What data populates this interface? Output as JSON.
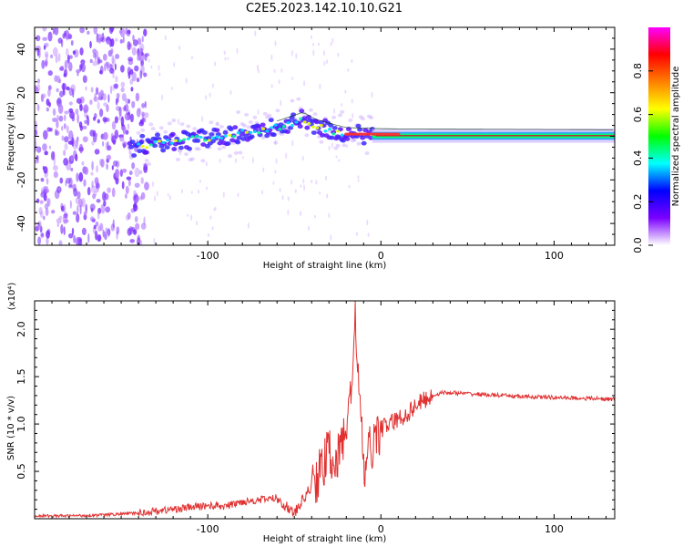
{
  "title": "C2E5.2023.142.10.10.G21",
  "chart_data": [
    {
      "type": "heatmap",
      "xlabel": "Height of straight line (km)",
      "ylabel": "Frequency (Hz)",
      "xlim": [
        -200,
        135
      ],
      "ylim": [
        -50,
        50
      ],
      "x_ticks": [
        -100,
        0,
        100
      ],
      "y_ticks": [
        40,
        20,
        0,
        -20,
        -40
      ],
      "colorbar": {
        "label": "Normalized spectral amplitude",
        "range": [
          0,
          1
        ],
        "ticks": [
          "0.0",
          "0.2",
          "0.4",
          "0.6",
          "0.8"
        ],
        "colors": [
          "#ffffff",
          "#7a00ff",
          "#0000ff",
          "#00ffff",
          "#00ff00",
          "#ffff00",
          "#ff8000",
          "#ff0000",
          "#ff00ff"
        ]
      },
      "ridge": {
        "x": [
          -200,
          -150,
          -140,
          -100,
          -60,
          -45,
          -38,
          -30,
          -20,
          0,
          20,
          60,
          100,
          135
        ],
        "y": [
          -5,
          -8,
          -4,
          -1,
          4,
          8,
          5,
          3,
          1,
          0.5,
          0.3,
          0.2,
          0.1,
          0
        ]
      }
    },
    {
      "type": "line",
      "xlabel": "Height of straight line (km)",
      "ylabel": "SNR (10 * v/v)",
      "y_multiplier": "(x10⁴)",
      "xlim": [
        -200,
        135
      ],
      "ylim": [
        0,
        2.3
      ],
      "x_ticks": [
        -100,
        0,
        100
      ],
      "y_ticks": [
        "0.5",
        "1.0",
        "1.5",
        "2.0"
      ],
      "line_color": "#e03030",
      "series": [
        {
          "x": [
            -200,
            -180,
            -160,
            -140,
            -130,
            -120,
            -110,
            -100,
            -90,
            -80,
            -70,
            -60,
            -50,
            -45,
            -40,
            -35,
            -30,
            -25,
            -20,
            -17,
            -15,
            -12,
            -10,
            -8,
            -5,
            0,
            5,
            10,
            15,
            20,
            25,
            30,
            35,
            40,
            60,
            80,
            100,
            120,
            135
          ],
          "y": [
            0.03,
            0.03,
            0.04,
            0.06,
            0.08,
            0.1,
            0.12,
            0.14,
            0.13,
            0.18,
            0.2,
            0.22,
            0.05,
            0.2,
            0.35,
            0.5,
            0.7,
            0.6,
            1.0,
            1.3,
            2.3,
            1.1,
            0.5,
            0.6,
            0.8,
            0.95,
            1.0,
            1.05,
            1.1,
            1.2,
            1.25,
            1.3,
            1.33,
            1.33,
            1.31,
            1.29,
            1.28,
            1.27,
            1.26
          ]
        }
      ]
    }
  ]
}
